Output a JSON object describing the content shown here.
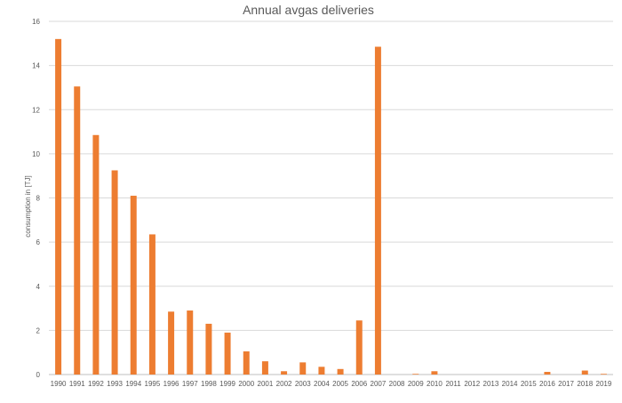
{
  "chart_data": {
    "type": "bar",
    "title": "Annual avgas deliveries",
    "xlabel": "",
    "ylabel": "consumption in [TJ]",
    "ylim": [
      0,
      16
    ],
    "yticks": [
      0,
      2,
      4,
      6,
      8,
      10,
      12,
      14,
      16
    ],
    "grid": true,
    "legend": "none",
    "bar_color": "#ED7D31",
    "categories": [
      "1990",
      "1991",
      "1992",
      "1993",
      "1994",
      "1995",
      "1996",
      "1997",
      "1998",
      "1999",
      "2000",
      "2001",
      "2002",
      "2003",
      "2004",
      "2005",
      "2006",
      "2007",
      "2008",
      "2009",
      "2010",
      "2011",
      "2012",
      "2013",
      "2014",
      "2015",
      "2016",
      "2017",
      "2018",
      "2019"
    ],
    "values": [
      15.2,
      13.05,
      10.85,
      9.25,
      8.1,
      6.35,
      2.85,
      2.9,
      2.3,
      1.9,
      1.05,
      0.6,
      0.15,
      0.55,
      0.35,
      0.25,
      2.45,
      14.85,
      0,
      0.03,
      0.15,
      0,
      0,
      0,
      0,
      0,
      0.12,
      0,
      0.18,
      0.03
    ]
  }
}
